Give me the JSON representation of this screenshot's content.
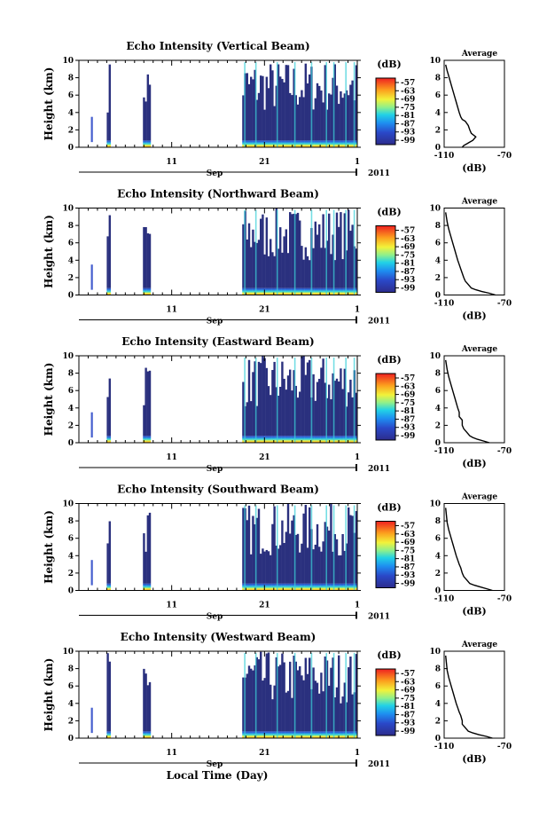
{
  "figure": {
    "xlabel": "Local Time (Day)"
  },
  "chart_data": [
    {
      "type": "heatmap",
      "title": "Echo Intensity (Vertical Beam)",
      "ylabel": "Height (km)",
      "ylim": [
        0,
        10
      ],
      "yticks": [
        "0",
        "2",
        "4",
        "6",
        "8",
        "10"
      ],
      "xticks": [
        "11",
        "21",
        "1"
      ],
      "month_label": "Sep",
      "year_label": "2011",
      "colorbar": {
        "unit": "(dB)",
        "ticks": [
          "-57",
          "-63",
          "-69",
          "-75",
          "-81",
          "-87",
          "-93",
          "-99"
        ]
      },
      "profile": {
        "title": "Average",
        "xlabel": "(dB)",
        "xticks": [
          "-110",
          "-70"
        ],
        "yticks": [
          "0",
          "2",
          "4",
          "6",
          "8",
          "10"
        ],
        "x": [
          -98,
          -97,
          -95,
          -93,
          -91,
          -89,
          -92,
          -93,
          -94,
          -96,
          -98,
          -99,
          -100,
          -101,
          -102,
          -103,
          -104,
          -105,
          -106,
          -107,
          -108,
          -109
        ],
        "y": [
          0.0,
          0.2,
          0.4,
          0.6,
          0.8,
          1.2,
          1.6,
          2.0,
          2.5,
          3.0,
          3.2,
          3.5,
          4.0,
          4.6,
          5.2,
          5.8,
          6.4,
          7.0,
          7.6,
          8.2,
          8.8,
          9.5
        ]
      }
    },
    {
      "type": "heatmap",
      "title": "Echo Intensity (Northward Beam)",
      "ylabel": "Height (km)",
      "ylim": [
        0,
        10
      ],
      "yticks": [
        "0",
        "2",
        "4",
        "6",
        "8",
        "10"
      ],
      "xticks": [
        "11",
        "21",
        "1"
      ],
      "month_label": "Sep",
      "year_label": "2011",
      "colorbar": {
        "unit": "(dB)",
        "ticks": [
          "-57",
          "-63",
          "-69",
          "-75",
          "-81",
          "-87",
          "-93",
          "-99"
        ]
      },
      "profile": {
        "title": "Average",
        "xlabel": "(dB)",
        "xticks": [
          "-110",
          "-70"
        ],
        "yticks": [
          "0",
          "2",
          "4",
          "6",
          "8",
          "10"
        ],
        "x": [
          -76,
          -80,
          -85,
          -89,
          -92,
          -94,
          -96,
          -97,
          -98,
          -99,
          -100,
          -101,
          -102,
          -103,
          -104,
          -105,
          -106,
          -107,
          -108,
          -109
        ],
        "y": [
          0.0,
          0.2,
          0.4,
          0.6,
          0.8,
          1.2,
          1.6,
          2.0,
          2.5,
          3.0,
          3.5,
          4.0,
          4.6,
          5.2,
          5.8,
          6.4,
          7.0,
          7.6,
          8.4,
          9.5
        ]
      }
    },
    {
      "type": "heatmap",
      "title": "Echo Intensity (Eastward Beam)",
      "ylabel": "Height (km)",
      "ylim": [
        0,
        10
      ],
      "yticks": [
        "0",
        "2",
        "4",
        "6",
        "8",
        "10"
      ],
      "xticks": [
        "11",
        "21",
        "1"
      ],
      "month_label": "Sep",
      "year_label": "2011",
      "colorbar": {
        "unit": "(dB)",
        "ticks": [
          "-57",
          "-63",
          "-69",
          "-75",
          "-81",
          "-87",
          "-93",
          "-99"
        ]
      },
      "profile": {
        "title": "Average",
        "xlabel": "(dB)",
        "xticks": [
          "-110",
          "-70"
        ],
        "yticks": [
          "0",
          "2",
          "4",
          "6",
          "8",
          "10"
        ],
        "x": [
          -80,
          -84,
          -88,
          -91,
          -93,
          -95,
          -97,
          -98,
          -98,
          -100,
          -100,
          -101,
          -102,
          -103,
          -104,
          -105,
          -106,
          -107,
          -108,
          -109
        ],
        "y": [
          0.0,
          0.2,
          0.4,
          0.6,
          0.8,
          1.2,
          1.6,
          2.0,
          2.6,
          3.0,
          3.5,
          4.0,
          4.6,
          5.2,
          5.8,
          6.4,
          7.0,
          7.6,
          8.4,
          9.5
        ]
      }
    },
    {
      "type": "heatmap",
      "title": "Echo Intensity (Southward Beam)",
      "ylabel": "Height (km)",
      "ylim": [
        0,
        10
      ],
      "yticks": [
        "0",
        "2",
        "4",
        "6",
        "8",
        "10"
      ],
      "xticks": [
        "11",
        "21",
        "1"
      ],
      "month_label": "Sep",
      "year_label": "2011",
      "colorbar": {
        "unit": "(dB)",
        "ticks": [
          "-57",
          "-63",
          "-69",
          "-75",
          "-81",
          "-87",
          "-93",
          "-99"
        ]
      },
      "profile": {
        "title": "Average",
        "xlabel": "(dB)",
        "xticks": [
          "-110",
          "-70"
        ],
        "yticks": [
          "0",
          "2",
          "4",
          "6",
          "8",
          "10"
        ],
        "x": [
          -78,
          -82,
          -86,
          -90,
          -93,
          -95,
          -97,
          -98,
          -99,
          -100,
          -101,
          -102,
          -103,
          -104,
          -105,
          -106,
          -107,
          -108,
          -109
        ],
        "y": [
          0.0,
          0.2,
          0.4,
          0.6,
          0.8,
          1.2,
          1.6,
          2.0,
          2.6,
          3.0,
          3.5,
          4.0,
          4.6,
          5.2,
          5.8,
          6.4,
          7.0,
          7.8,
          9.5
        ]
      }
    },
    {
      "type": "heatmap",
      "title": "Echo Intensity (Westward Beam)",
      "ylabel": "Height (km)",
      "ylim": [
        0,
        10
      ],
      "yticks": [
        "0",
        "2",
        "4",
        "6",
        "8",
        "10"
      ],
      "xticks": [
        "11",
        "21",
        "1"
      ],
      "month_label": "Sep",
      "year_label": "2011",
      "colorbar": {
        "unit": "(dB)",
        "ticks": [
          "-57",
          "-63",
          "-69",
          "-75",
          "-81",
          "-87",
          "-93",
          "-99"
        ]
      },
      "profile": {
        "title": "Average",
        "xlabel": "(dB)",
        "xticks": [
          "-110",
          "-70"
        ],
        "yticks": [
          "0",
          "2",
          "4",
          "6",
          "8",
          "10"
        ],
        "x": [
          -78,
          -82,
          -87,
          -91,
          -94,
          -96,
          -98,
          -98,
          -99,
          -100,
          -101,
          -102,
          -103,
          -104,
          -105,
          -106,
          -107,
          -108,
          -109
        ],
        "y": [
          0.0,
          0.2,
          0.4,
          0.6,
          0.8,
          1.2,
          1.6,
          2.0,
          2.6,
          3.0,
          3.5,
          4.0,
          4.6,
          5.2,
          5.8,
          6.4,
          7.0,
          7.8,
          9.5
        ]
      }
    }
  ]
}
